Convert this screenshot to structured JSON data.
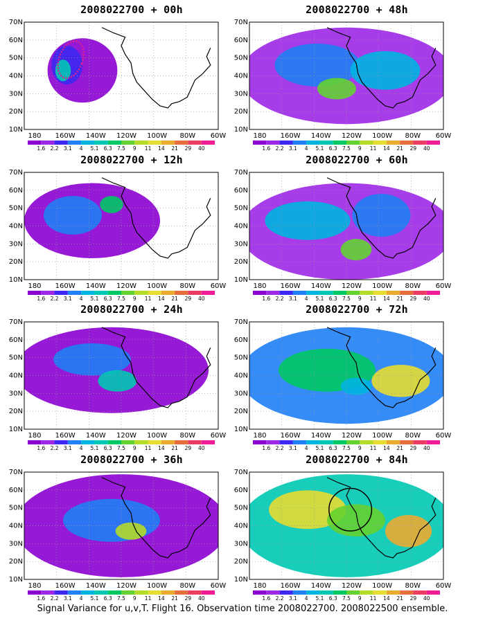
{
  "panels": [
    {
      "title": "2008022700 + 00h"
    },
    {
      "title": "2008022700 + 48h"
    },
    {
      "title": "2008022700 + 12h"
    },
    {
      "title": "2008022700 + 60h"
    },
    {
      "title": "2008022700 + 24h"
    },
    {
      "title": "2008022700 + 72h"
    },
    {
      "title": "2008022700 + 36h"
    },
    {
      "title": "2008022700 + 84h"
    }
  ],
  "axes": {
    "lat_labels": [
      "70N",
      "60N",
      "50N",
      "40N",
      "30N",
      "20N",
      "10N"
    ],
    "lon_labels": [
      "180",
      "160W",
      "140W",
      "120W",
      "100W",
      "80W",
      "60W"
    ]
  },
  "colorbar": {
    "labels": [
      "1.6",
      "2.2",
      "3.1",
      "4",
      "5.1",
      "6.3",
      "7.5",
      "9",
      "11",
      "14",
      "21",
      "29",
      "40"
    ],
    "colors": [
      "#8b00d0",
      "#9d28e6",
      "#3c28f0",
      "#2080f5",
      "#00b4e0",
      "#00c8b4",
      "#00c864",
      "#64d230",
      "#b4dc28",
      "#e6dc32",
      "#ebaa32",
      "#e66e3c",
      "#eb3c64",
      "#f01e96"
    ]
  },
  "footer": {
    "text": "Signal Variance for u,v,T. Flight 16. Observation time 2008022700. 2008022500 ensemble."
  }
}
